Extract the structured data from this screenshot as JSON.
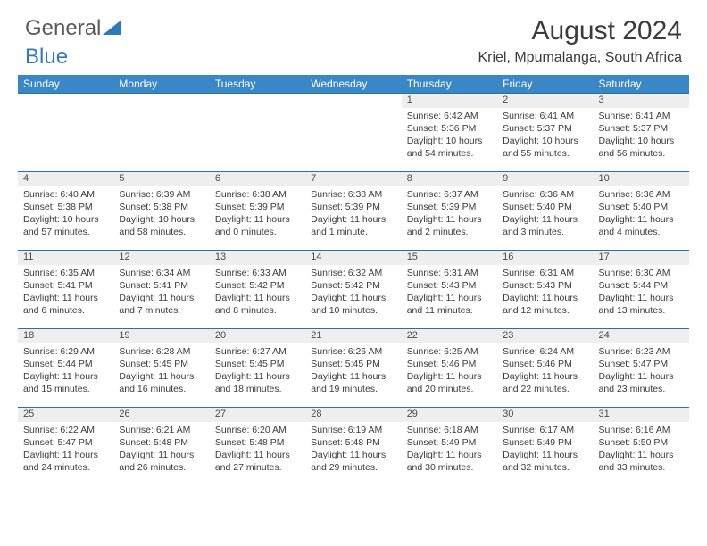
{
  "logo": {
    "text1": "General",
    "text2": "Blue"
  },
  "title": "August 2024",
  "location": "Kriel, Mpumalanga, South Africa",
  "colors": {
    "header_bg": "#3a87c8",
    "header_fg": "#ffffff",
    "daynum_bg": "#eeeeee",
    "rule": "#2f6fa3",
    "logo_gray": "#5a5a5a",
    "logo_blue": "#2f79b9"
  },
  "weekdays": [
    "Sunday",
    "Monday",
    "Tuesday",
    "Wednesday",
    "Thursday",
    "Friday",
    "Saturday"
  ],
  "weeks": [
    [
      null,
      null,
      null,
      null,
      {
        "n": "1",
        "sr": "6:42 AM",
        "ss": "5:36 PM",
        "dl": "10 hours and 54 minutes."
      },
      {
        "n": "2",
        "sr": "6:41 AM",
        "ss": "5:37 PM",
        "dl": "10 hours and 55 minutes."
      },
      {
        "n": "3",
        "sr": "6:41 AM",
        "ss": "5:37 PM",
        "dl": "10 hours and 56 minutes."
      }
    ],
    [
      {
        "n": "4",
        "sr": "6:40 AM",
        "ss": "5:38 PM",
        "dl": "10 hours and 57 minutes."
      },
      {
        "n": "5",
        "sr": "6:39 AM",
        "ss": "5:38 PM",
        "dl": "10 hours and 58 minutes."
      },
      {
        "n": "6",
        "sr": "6:38 AM",
        "ss": "5:39 PM",
        "dl": "11 hours and 0 minutes."
      },
      {
        "n": "7",
        "sr": "6:38 AM",
        "ss": "5:39 PM",
        "dl": "11 hours and 1 minute."
      },
      {
        "n": "8",
        "sr": "6:37 AM",
        "ss": "5:39 PM",
        "dl": "11 hours and 2 minutes."
      },
      {
        "n": "9",
        "sr": "6:36 AM",
        "ss": "5:40 PM",
        "dl": "11 hours and 3 minutes."
      },
      {
        "n": "10",
        "sr": "6:36 AM",
        "ss": "5:40 PM",
        "dl": "11 hours and 4 minutes."
      }
    ],
    [
      {
        "n": "11",
        "sr": "6:35 AM",
        "ss": "5:41 PM",
        "dl": "11 hours and 6 minutes."
      },
      {
        "n": "12",
        "sr": "6:34 AM",
        "ss": "5:41 PM",
        "dl": "11 hours and 7 minutes."
      },
      {
        "n": "13",
        "sr": "6:33 AM",
        "ss": "5:42 PM",
        "dl": "11 hours and 8 minutes."
      },
      {
        "n": "14",
        "sr": "6:32 AM",
        "ss": "5:42 PM",
        "dl": "11 hours and 10 minutes."
      },
      {
        "n": "15",
        "sr": "6:31 AM",
        "ss": "5:43 PM",
        "dl": "11 hours and 11 minutes."
      },
      {
        "n": "16",
        "sr": "6:31 AM",
        "ss": "5:43 PM",
        "dl": "11 hours and 12 minutes."
      },
      {
        "n": "17",
        "sr": "6:30 AM",
        "ss": "5:44 PM",
        "dl": "11 hours and 13 minutes."
      }
    ],
    [
      {
        "n": "18",
        "sr": "6:29 AM",
        "ss": "5:44 PM",
        "dl": "11 hours and 15 minutes."
      },
      {
        "n": "19",
        "sr": "6:28 AM",
        "ss": "5:45 PM",
        "dl": "11 hours and 16 minutes."
      },
      {
        "n": "20",
        "sr": "6:27 AM",
        "ss": "5:45 PM",
        "dl": "11 hours and 18 minutes."
      },
      {
        "n": "21",
        "sr": "6:26 AM",
        "ss": "5:45 PM",
        "dl": "11 hours and 19 minutes."
      },
      {
        "n": "22",
        "sr": "6:25 AM",
        "ss": "5:46 PM",
        "dl": "11 hours and 20 minutes."
      },
      {
        "n": "23",
        "sr": "6:24 AM",
        "ss": "5:46 PM",
        "dl": "11 hours and 22 minutes."
      },
      {
        "n": "24",
        "sr": "6:23 AM",
        "ss": "5:47 PM",
        "dl": "11 hours and 23 minutes."
      }
    ],
    [
      {
        "n": "25",
        "sr": "6:22 AM",
        "ss": "5:47 PM",
        "dl": "11 hours and 24 minutes."
      },
      {
        "n": "26",
        "sr": "6:21 AM",
        "ss": "5:48 PM",
        "dl": "11 hours and 26 minutes."
      },
      {
        "n": "27",
        "sr": "6:20 AM",
        "ss": "5:48 PM",
        "dl": "11 hours and 27 minutes."
      },
      {
        "n": "28",
        "sr": "6:19 AM",
        "ss": "5:48 PM",
        "dl": "11 hours and 29 minutes."
      },
      {
        "n": "29",
        "sr": "6:18 AM",
        "ss": "5:49 PM",
        "dl": "11 hours and 30 minutes."
      },
      {
        "n": "30",
        "sr": "6:17 AM",
        "ss": "5:49 PM",
        "dl": "11 hours and 32 minutes."
      },
      {
        "n": "31",
        "sr": "6:16 AM",
        "ss": "5:50 PM",
        "dl": "11 hours and 33 minutes."
      }
    ]
  ],
  "labels": {
    "sunrise": "Sunrise: ",
    "sunset": "Sunset: ",
    "daylight": "Daylight: "
  }
}
